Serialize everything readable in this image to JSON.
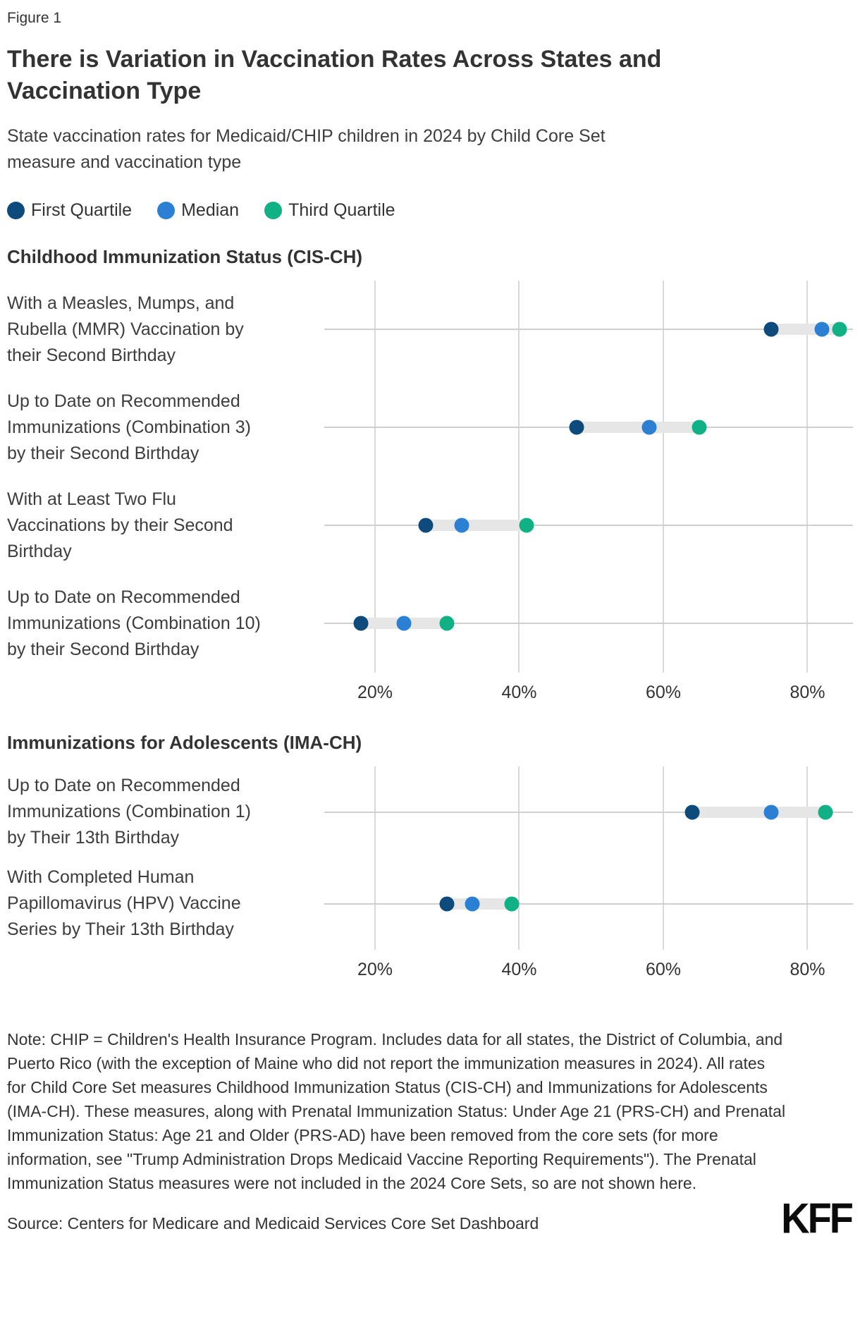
{
  "figure_label": "Figure 1",
  "title": {
    "line1": "There is Variation in Vaccination Rates Across States and",
    "line2": "Vaccination Type"
  },
  "subtitle": "State vaccination rates for Medicaid/CHIP children in 2024 by Child Core Set measure and vaccination type",
  "legend": [
    {
      "label": "First Quartile",
      "color": "#0e4b7d"
    },
    {
      "label": "Median",
      "color": "#2c80d4"
    },
    {
      "label": "Third Quartile",
      "color": "#0fb185"
    }
  ],
  "colors": {
    "first_quartile": "#0e4b7d",
    "median": "#2c80d4",
    "third_quartile": "#0fb185",
    "gridline": "#d9d9d9",
    "row_line": "#cfcfcf",
    "range_band": "#e6e6e6",
    "text": "#333333"
  },
  "chart_data": [
    {
      "type": "scatter",
      "section": "Childhood Immunization Status (CIS-CH)",
      "categories": [
        "With a Measles, Mumps, and Rubella (MMR) Vaccination by their Second Birthday",
        "Up to Date on Recommended Immunizations (Combination 3) by their Second Birthday",
        "With at Least Two Flu Vaccinations by their Second Birthday",
        "Up to Date on Recommended Immunizations (Combination 10) by their Second Birthday"
      ],
      "series": [
        {
          "name": "First Quartile",
          "values": [
            75,
            48,
            27,
            18
          ]
        },
        {
          "name": "Median",
          "values": [
            82,
            58,
            32,
            24
          ]
        },
        {
          "name": "Third Quartile",
          "values": [
            84.5,
            65,
            41,
            30
          ]
        }
      ],
      "xticks": [
        {
          "label": "20%",
          "value": 20
        },
        {
          "label": "40%",
          "value": 40
        },
        {
          "label": "60%",
          "value": 60
        },
        {
          "label": "80%",
          "value": 80
        }
      ],
      "xlim": [
        6,
        87
      ],
      "unit": "%"
    },
    {
      "type": "scatter",
      "section": "Immunizations for Adolescents (IMA-CH)",
      "categories": [
        "Up to Date on Recommended Immunizations (Combination 1) by Their 13th Birthday",
        "With Completed Human Papillomavirus (HPV) Vaccine Series by Their 13th Birthday"
      ],
      "series": [
        {
          "name": "First Quartile",
          "values": [
            64,
            30
          ]
        },
        {
          "name": "Median",
          "values": [
            75,
            33.5
          ]
        },
        {
          "name": "Third Quartile",
          "values": [
            82.5,
            39
          ]
        }
      ],
      "xticks": [
        {
          "label": "20%",
          "value": 20
        },
        {
          "label": "40%",
          "value": 40
        },
        {
          "label": "60%",
          "value": 60
        },
        {
          "label": "80%",
          "value": 80
        }
      ],
      "xlim": [
        6,
        87
      ],
      "unit": "%"
    }
  ],
  "note": "Note: CHIP = Children's Health Insurance Program. Includes data for all states, the District of Columbia, and Puerto Rico (with the exception of Maine who did not report the immunization measures in 2024). All rates for Child Core Set measures Childhood Immunization Status (CIS-CH) and Immunizations for Adolescents (IMA-CH). These measures, along with Prenatal Immunization Status: Under Age 21 (PRS-CH) and Prenatal Immunization Status: Age 21 and Older (PRS-AD) have been removed from the core sets (for more information, see \"Trump Administration Drops Medicaid Vaccine Reporting Requirements\"). The Prenatal Immunization Status measures were not included in the 2024 Core Sets, so are not shown here.",
  "source": "Source: Centers for Medicare and Medicaid Services Core Set Dashboard",
  "logo": "KFF"
}
